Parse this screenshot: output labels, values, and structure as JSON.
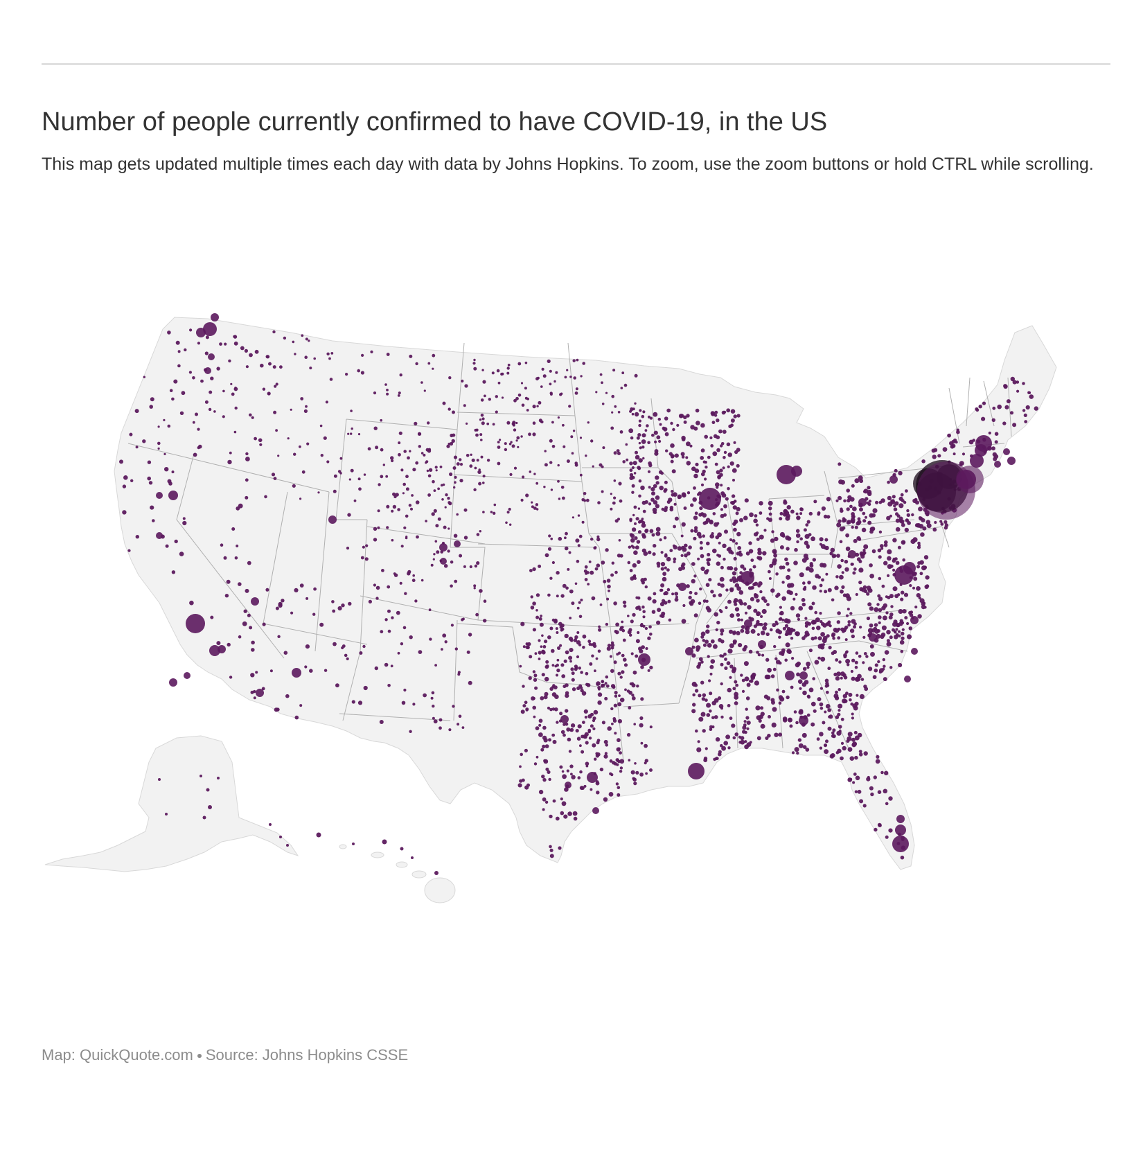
{
  "header": {
    "title": "Number of people currently confirmed to have COVID-19, in the US",
    "description": "This map gets updated multiple times each day with data by Johns Hopkins. To zoom, use the zoom buttons or hold CTRL while scrolling."
  },
  "footer": {
    "map_credit": "Map: QuickQuote.com",
    "source": "Source: Johns Hopkins CSSE"
  },
  "map": {
    "region": "United States",
    "layer": "counties",
    "symbol": "proportional-circles",
    "land_color": "#f2f2f2",
    "border_color": "#b0b0b0",
    "bubble_color": "#5c1a5e",
    "bubble_dark_color": "#1a0a1a"
  }
}
